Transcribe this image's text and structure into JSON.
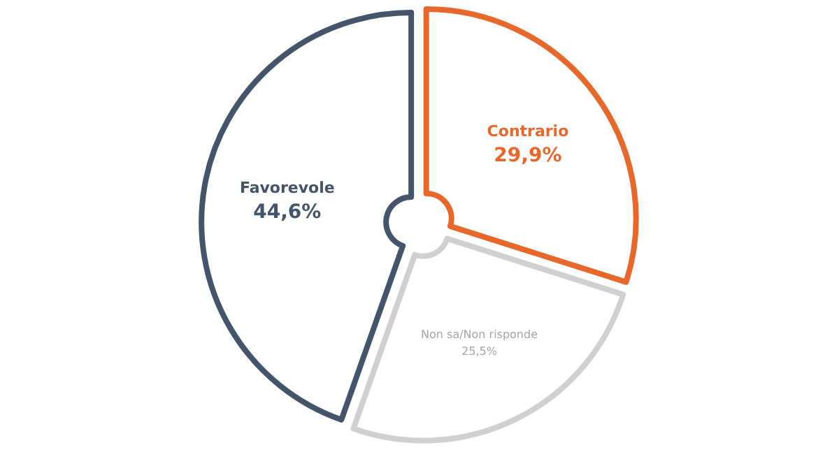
{
  "chart_data": {
    "type": "pie",
    "categories": [
      "Contrario",
      "Non sa/Non risponde",
      "Favorevole"
    ],
    "values": [
      29.9,
      25.5,
      44.6
    ],
    "colors": [
      "#e8672a",
      "#d0d0d0",
      "#44546a"
    ],
    "value_labels": [
      "29,9%",
      "25,5%",
      "44,6%"
    ]
  }
}
